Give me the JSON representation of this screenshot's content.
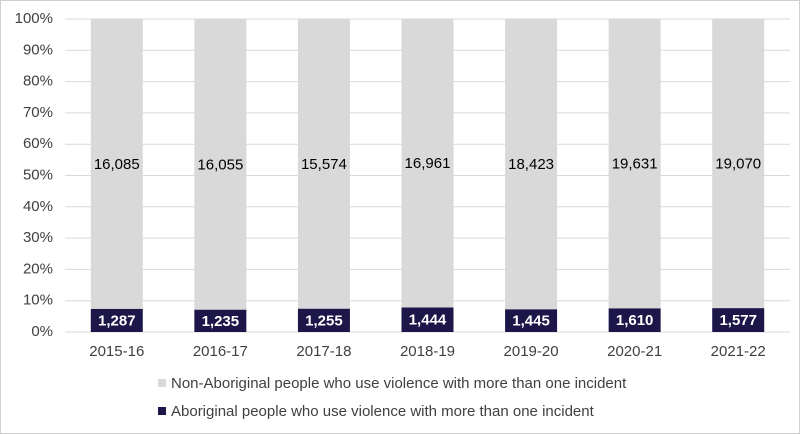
{
  "chart_data": {
    "type": "bar",
    "stacked": true,
    "normalize": true,
    "categories": [
      "2015-16",
      "2016-17",
      "2017-18",
      "2018-19",
      "2019-20",
      "2020-21",
      "2021-22"
    ],
    "series": [
      {
        "name": "Aboriginal people who use violence with more than one incident",
        "color": "#1c1748",
        "values": [
          1287,
          1235,
          1255,
          1444,
          1445,
          1610,
          1577
        ],
        "value_labels": [
          "1,287",
          "1,235",
          "1,255",
          "1,444",
          "1,445",
          "1,610",
          "1,577"
        ]
      },
      {
        "name": "Non-Aboriginal people who use violence with more than one incident",
        "color": "#d9d9d9",
        "values": [
          16085,
          16055,
          15574,
          16961,
          18423,
          19631,
          19070
        ],
        "value_labels": [
          "16,085",
          "16,055",
          "15,574",
          "16,961",
          "18,423",
          "19,631",
          "19,070"
        ]
      }
    ],
    "ylim": [
      0,
      100
    ],
    "yticks": [
      {
        "value": 0,
        "label": "0%"
      },
      {
        "value": 10,
        "label": "10%"
      },
      {
        "value": 20,
        "label": "20%"
      },
      {
        "value": 30,
        "label": "30%"
      },
      {
        "value": 40,
        "label": "40%"
      },
      {
        "value": 50,
        "label": "50%"
      },
      {
        "value": 60,
        "label": "60%"
      },
      {
        "value": 70,
        "label": "70%"
      },
      {
        "value": 80,
        "label": "80%"
      },
      {
        "value": 90,
        "label": "90%"
      },
      {
        "value": 100,
        "label": "100%"
      }
    ],
    "grid": true,
    "legend": "bottom"
  }
}
